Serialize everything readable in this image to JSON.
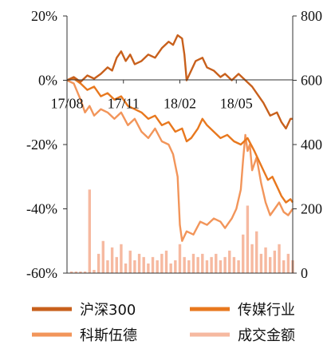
{
  "chart_data": {
    "type": "line",
    "x_ticks": [
      "17/08",
      "17/11",
      "18/02",
      "18/05"
    ],
    "left_axis": {
      "min": -0.6,
      "max": 0.2,
      "ticks": [
        0.2,
        0,
        -0.2,
        -0.4,
        -0.6
      ],
      "tick_labels": [
        "20%",
        "0%",
        "-20%",
        "-40%",
        "-60%"
      ]
    },
    "right_axis": {
      "min": 0,
      "max": 800,
      "ticks": [
        800,
        600,
        400,
        200,
        0
      ],
      "tick_labels": [
        "800",
        "600",
        "400",
        "200",
        "0"
      ]
    },
    "x_range": [
      0,
      1
    ],
    "series": [
      {
        "name": "沪深300",
        "axis": "left",
        "color": "#c8601c",
        "points": [
          [
            0,
            0
          ],
          [
            0.03,
            0.01
          ],
          [
            0.06,
            -0.005
          ],
          [
            0.09,
            0.015
          ],
          [
            0.12,
            0.005
          ],
          [
            0.15,
            0.02
          ],
          [
            0.18,
            0.04
          ],
          [
            0.2,
            0.03
          ],
          [
            0.22,
            0.07
          ],
          [
            0.24,
            0.09
          ],
          [
            0.26,
            0.06
          ],
          [
            0.28,
            0.08
          ],
          [
            0.3,
            0.05
          ],
          [
            0.33,
            0.06
          ],
          [
            0.36,
            0.08
          ],
          [
            0.39,
            0.07
          ],
          [
            0.42,
            0.1
          ],
          [
            0.45,
            0.12
          ],
          [
            0.47,
            0.11
          ],
          [
            0.49,
            0.14
          ],
          [
            0.51,
            0.13
          ],
          [
            0.52,
            0.08
          ],
          [
            0.53,
            0.0
          ],
          [
            0.55,
            0.03
          ],
          [
            0.57,
            0.06
          ],
          [
            0.6,
            0.07
          ],
          [
            0.62,
            0.04
          ],
          [
            0.65,
            0.03
          ],
          [
            0.68,
            0.01
          ],
          [
            0.7,
            0.02
          ],
          [
            0.73,
            0.0
          ],
          [
            0.76,
            0.02
          ],
          [
            0.79,
            0.0
          ],
          [
            0.82,
            -0.02
          ],
          [
            0.85,
            -0.05
          ],
          [
            0.87,
            -0.07
          ],
          [
            0.9,
            -0.11
          ],
          [
            0.93,
            -0.1
          ],
          [
            0.95,
            -0.13
          ],
          [
            0.97,
            -0.15
          ],
          [
            0.99,
            -0.12
          ],
          [
            1.0,
            -0.12
          ]
        ]
      },
      {
        "name": "传媒行业",
        "axis": "left",
        "color": "#e8781e",
        "points": [
          [
            0,
            0
          ],
          [
            0.03,
            0.005
          ],
          [
            0.06,
            -0.01
          ],
          [
            0.09,
            -0.03
          ],
          [
            0.12,
            -0.02
          ],
          [
            0.15,
            -0.05
          ],
          [
            0.18,
            -0.04
          ],
          [
            0.21,
            -0.06
          ],
          [
            0.24,
            -0.05
          ],
          [
            0.27,
            -0.08
          ],
          [
            0.3,
            -0.09
          ],
          [
            0.33,
            -0.1
          ],
          [
            0.36,
            -0.12
          ],
          [
            0.39,
            -0.11
          ],
          [
            0.42,
            -0.14
          ],
          [
            0.45,
            -0.13
          ],
          [
            0.48,
            -0.16
          ],
          [
            0.51,
            -0.15
          ],
          [
            0.53,
            -0.19
          ],
          [
            0.55,
            -0.18
          ],
          [
            0.58,
            -0.15
          ],
          [
            0.6,
            -0.12
          ],
          [
            0.62,
            -0.14
          ],
          [
            0.65,
            -0.16
          ],
          [
            0.68,
            -0.18
          ],
          [
            0.71,
            -0.17
          ],
          [
            0.74,
            -0.19
          ],
          [
            0.77,
            -0.2
          ],
          [
            0.8,
            -0.18
          ],
          [
            0.83,
            -0.22
          ],
          [
            0.85,
            -0.25
          ],
          [
            0.87,
            -0.28
          ],
          [
            0.89,
            -0.31
          ],
          [
            0.91,
            -0.3
          ],
          [
            0.93,
            -0.33
          ],
          [
            0.95,
            -0.36
          ],
          [
            0.97,
            -0.38
          ],
          [
            0.99,
            -0.37
          ],
          [
            1.0,
            -0.38
          ]
        ]
      },
      {
        "name": "科斯伍德",
        "axis": "left",
        "color": "#f2955a",
        "points": [
          [
            0,
            0
          ],
          [
            0.03,
            -0.01
          ],
          [
            0.06,
            -0.06
          ],
          [
            0.08,
            -0.1
          ],
          [
            0.1,
            -0.08
          ],
          [
            0.12,
            -0.11
          ],
          [
            0.15,
            -0.09
          ],
          [
            0.18,
            -0.1
          ],
          [
            0.21,
            -0.12
          ],
          [
            0.24,
            -0.1
          ],
          [
            0.27,
            -0.14
          ],
          [
            0.3,
            -0.12
          ],
          [
            0.33,
            -0.16
          ],
          [
            0.36,
            -0.18
          ],
          [
            0.39,
            -0.15
          ],
          [
            0.42,
            -0.19
          ],
          [
            0.45,
            -0.2
          ],
          [
            0.47,
            -0.23
          ],
          [
            0.49,
            -0.3
          ],
          [
            0.5,
            -0.45
          ],
          [
            0.51,
            -0.5
          ],
          [
            0.53,
            -0.47
          ],
          [
            0.56,
            -0.48
          ],
          [
            0.59,
            -0.44
          ],
          [
            0.62,
            -0.45
          ],
          [
            0.65,
            -0.43
          ],
          [
            0.68,
            -0.44
          ],
          [
            0.7,
            -0.46
          ],
          [
            0.73,
            -0.43
          ],
          [
            0.75,
            -0.4
          ],
          [
            0.77,
            -0.34
          ],
          [
            0.78,
            -0.25
          ],
          [
            0.79,
            -0.17
          ],
          [
            0.8,
            -0.22
          ],
          [
            0.81,
            -0.2
          ],
          [
            0.82,
            -0.28
          ],
          [
            0.84,
            -0.24
          ],
          [
            0.86,
            -0.32
          ],
          [
            0.88,
            -0.38
          ],
          [
            0.9,
            -0.42
          ],
          [
            0.92,
            -0.4
          ],
          [
            0.94,
            -0.38
          ],
          [
            0.96,
            -0.41
          ],
          [
            0.98,
            -0.42
          ],
          [
            1.0,
            -0.4
          ]
        ]
      },
      {
        "name": "成交金额",
        "type": "bar",
        "axis": "right",
        "color": "#f6b9a0",
        "x": [
          0.02,
          0.04,
          0.06,
          0.08,
          0.1,
          0.12,
          0.14,
          0.16,
          0.18,
          0.2,
          0.22,
          0.24,
          0.26,
          0.28,
          0.3,
          0.32,
          0.34,
          0.36,
          0.38,
          0.4,
          0.42,
          0.44,
          0.46,
          0.48,
          0.5,
          0.52,
          0.54,
          0.56,
          0.58,
          0.6,
          0.62,
          0.64,
          0.66,
          0.68,
          0.7,
          0.72,
          0.74,
          0.76,
          0.78,
          0.8,
          0.82,
          0.84,
          0.86,
          0.88,
          0.9,
          0.92,
          0.94,
          0.96,
          0.98,
          1.0
        ],
        "values": [
          5,
          5,
          5,
          5,
          260,
          10,
          60,
          100,
          40,
          80,
          50,
          90,
          30,
          70,
          40,
          60,
          50,
          30,
          50,
          40,
          60,
          70,
          30,
          40,
          90,
          50,
          40,
          60,
          50,
          60,
          40,
          50,
          60,
          40,
          50,
          70,
          50,
          40,
          120,
          210,
          90,
          130,
          60,
          80,
          50,
          70,
          90,
          40,
          60,
          40
        ]
      }
    ],
    "legend_position": "bottom"
  }
}
